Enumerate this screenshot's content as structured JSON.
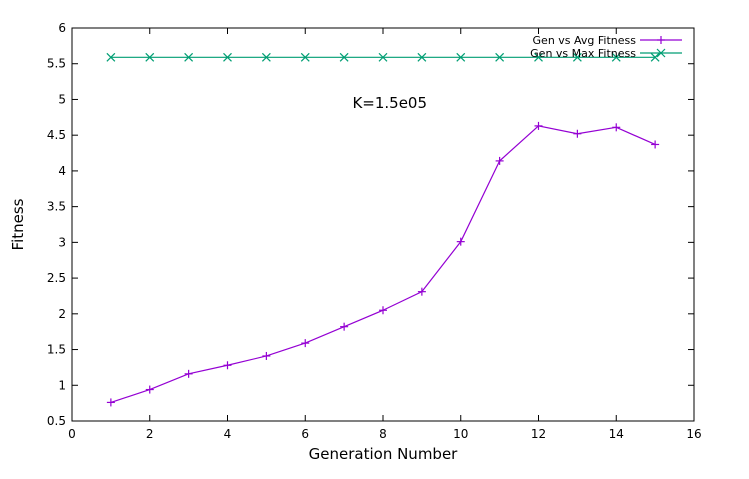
{
  "chart_data": {
    "type": "line",
    "title": "",
    "xlabel": "Generation Number",
    "ylabel": "Fitness",
    "xlim": [
      0,
      16
    ],
    "ylim": [
      0.5,
      6
    ],
    "xticks": [
      0,
      2,
      4,
      6,
      8,
      10,
      12,
      14,
      16
    ],
    "xtick_labels": [
      "0",
      "2",
      "4",
      "6",
      "8",
      "10",
      "12",
      "14",
      "16"
    ],
    "yticks": [
      0.5,
      1,
      1.5,
      2,
      2.5,
      3,
      3.5,
      4,
      4.5,
      5,
      5.5,
      6
    ],
    "ytick_labels": [
      "0.5",
      "1",
      "1.5",
      "2",
      "2.5",
      "3",
      "3.5",
      "4",
      "4.5",
      "5",
      "5.5",
      "6"
    ],
    "grid": false,
    "legend_position": "top-right",
    "annotation": {
      "text": "K=1.5e05",
      "x": 8.5,
      "y": 4.95
    },
    "x": [
      1,
      2,
      3,
      4,
      5,
      6,
      7,
      8,
      9,
      10,
      11,
      12,
      13,
      14,
      15
    ],
    "series": [
      {
        "name": "Gen vs Avg Fitness",
        "color": "#9400d3",
        "marker": "plus",
        "values": [
          0.76,
          0.94,
          1.16,
          1.28,
          1.41,
          1.59,
          1.82,
          2.05,
          2.31,
          3.01,
          4.14,
          4.63,
          4.52,
          4.61,
          4.37
        ]
      },
      {
        "name": "Gen vs Max Fitness",
        "color": "#009e73",
        "marker": "cross",
        "values": [
          5.59,
          5.59,
          5.59,
          5.59,
          5.59,
          5.59,
          5.59,
          5.59,
          5.59,
          5.59,
          5.59,
          5.59,
          5.59,
          5.59,
          5.59
        ]
      }
    ]
  }
}
